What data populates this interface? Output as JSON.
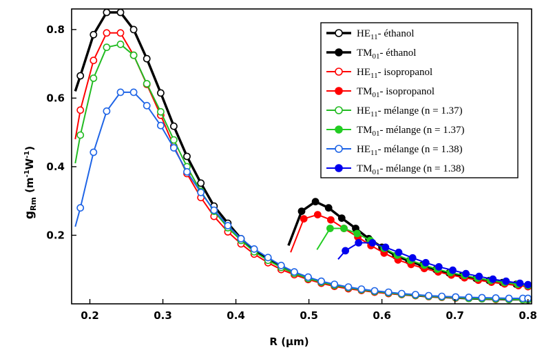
{
  "chart_data": {
    "type": "line",
    "xlabel": "R (µm)",
    "ylabel_main": "g",
    "ylabel_sub": "Rm",
    "ylabel_units": "(m",
    "ylabel_units_exp1": "-1",
    "ylabel_units_mid": "W",
    "ylabel_units_exp2": "-1",
    "ylabel_units_end": ")",
    "xlim": [
      0.175,
      0.805
    ],
    "ylim": [
      0.0,
      0.86
    ],
    "xticks": [
      0.2,
      0.3,
      0.4,
      0.5,
      0.6,
      0.7,
      0.8
    ],
    "xtick_labels": [
      "0.2",
      "0.3",
      "0.4",
      "0.5",
      "0.6",
      "0.7",
      "0.8"
    ],
    "yticks": [
      0.2,
      0.4,
      0.6,
      0.8
    ],
    "ytick_labels": [
      "0.2",
      "0.4",
      "0.6",
      "0.8"
    ],
    "grid": false,
    "legend_position": "top-right",
    "series": [
      {
        "name_main": "HE",
        "name_sub": "11",
        "name_rest": "- éthanol",
        "color": "#000000",
        "marker": "open",
        "line_width": 3.5,
        "x": [
          0.18,
          0.187,
          0.205,
          0.223,
          0.242,
          0.26,
          0.278,
          0.297,
          0.315,
          0.333,
          0.352,
          0.37,
          0.389,
          0.407,
          0.425,
          0.444,
          0.462,
          0.48,
          0.499,
          0.517,
          0.535,
          0.554,
          0.572,
          0.59,
          0.609,
          0.627,
          0.646,
          0.664,
          0.682,
          0.701,
          0.719,
          0.737,
          0.756,
          0.774,
          0.793,
          0.8
        ],
        "y": [
          0.62,
          0.665,
          0.785,
          0.85,
          0.85,
          0.8,
          0.715,
          0.615,
          0.518,
          0.43,
          0.352,
          0.285,
          0.235,
          0.19,
          0.155,
          0.13,
          0.108,
          0.09,
          0.075,
          0.063,
          0.054,
          0.047,
          0.041,
          0.036,
          0.032,
          0.028,
          0.025,
          0.022,
          0.02,
          0.018,
          0.016,
          0.015,
          0.014,
          0.013,
          0.013,
          0.012
        ]
      },
      {
        "name_main": "TM",
        "name_sub": "01",
        "name_rest": "- éthanol",
        "color": "#000000",
        "marker": "filled",
        "line_width": 3.5,
        "x": [
          0.472,
          0.49,
          0.509,
          0.527,
          0.545,
          0.564,
          0.582,
          0.6,
          0.619,
          0.637,
          0.655,
          0.674,
          0.692,
          0.71,
          0.729,
          0.747,
          0.765,
          0.784,
          0.8
        ],
        "y": [
          0.17,
          0.27,
          0.298,
          0.28,
          0.25,
          0.22,
          0.19,
          0.165,
          0.14,
          0.125,
          0.112,
          0.1,
          0.09,
          0.082,
          0.074,
          0.068,
          0.062,
          0.057,
          0.052
        ]
      },
      {
        "name_main": "HE",
        "name_sub": "11",
        "name_rest": "- isopropanol",
        "color": "#ff0000",
        "marker": "open",
        "line_width": 2,
        "x": [
          0.18,
          0.187,
          0.205,
          0.223,
          0.242,
          0.26,
          0.278,
          0.297,
          0.315,
          0.333,
          0.352,
          0.37,
          0.389,
          0.407,
          0.425,
          0.444,
          0.462,
          0.48,
          0.499,
          0.517,
          0.535,
          0.554,
          0.572,
          0.59,
          0.609,
          0.627,
          0.646,
          0.664,
          0.682,
          0.701,
          0.719,
          0.737,
          0.756,
          0.774,
          0.793,
          0.8
        ],
        "y": [
          0.48,
          0.565,
          0.71,
          0.79,
          0.79,
          0.725,
          0.64,
          0.55,
          0.46,
          0.38,
          0.31,
          0.255,
          0.21,
          0.175,
          0.145,
          0.12,
          0.1,
          0.085,
          0.071,
          0.06,
          0.051,
          0.044,
          0.039,
          0.034,
          0.03,
          0.027,
          0.024,
          0.021,
          0.019,
          0.017,
          0.016,
          0.015,
          0.013,
          0.013,
          0.012,
          0.012
        ]
      },
      {
        "name_main": "TM",
        "name_sub": "01",
        "name_rest": "- isopropanol",
        "color": "#ff0000",
        "marker": "filled",
        "line_width": 2,
        "x": [
          0.475,
          0.493,
          0.512,
          0.53,
          0.548,
          0.567,
          0.585,
          0.603,
          0.622,
          0.64,
          0.658,
          0.677,
          0.695,
          0.713,
          0.732,
          0.75,
          0.768,
          0.787,
          0.8
        ],
        "y": [
          0.15,
          0.248,
          0.26,
          0.245,
          0.22,
          0.195,
          0.17,
          0.148,
          0.128,
          0.115,
          0.103,
          0.093,
          0.084,
          0.076,
          0.069,
          0.063,
          0.058,
          0.053,
          0.05
        ]
      },
      {
        "name_main": "HE",
        "name_sub": "11",
        "name_rest": "- mélange (n = 1.37)",
        "color": "#22bb22",
        "marker": "open",
        "line_width": 2,
        "x": [
          0.18,
          0.187,
          0.205,
          0.223,
          0.242,
          0.26,
          0.278,
          0.297,
          0.315,
          0.333,
          0.352,
          0.37,
          0.389,
          0.407,
          0.425,
          0.444,
          0.462,
          0.48,
          0.499,
          0.517,
          0.535,
          0.554,
          0.572,
          0.59,
          0.609,
          0.627,
          0.646,
          0.664,
          0.682,
          0.701,
          0.719,
          0.737,
          0.756,
          0.774,
          0.793,
          0.8
        ],
        "y": [
          0.41,
          0.492,
          0.658,
          0.748,
          0.757,
          0.725,
          0.642,
          0.56,
          0.478,
          0.4,
          0.328,
          0.27,
          0.222,
          0.185,
          0.152,
          0.127,
          0.106,
          0.089,
          0.074,
          0.063,
          0.054,
          0.047,
          0.041,
          0.036,
          0.032,
          0.028,
          0.025,
          0.022,
          0.02,
          0.018,
          0.016,
          0.015,
          0.014,
          0.013,
          0.012,
          0.012
        ]
      },
      {
        "name_main": "TM",
        "name_sub": "01",
        "name_rest": "- mélange (n = 1.37)",
        "color": "#22cc22",
        "marker": "filled",
        "line_width": 2,
        "x": [
          0.511,
          0.529,
          0.548,
          0.566,
          0.584,
          0.603,
          0.621,
          0.639,
          0.658,
          0.676,
          0.694,
          0.713,
          0.731,
          0.749,
          0.768,
          0.786,
          0.8
        ],
        "y": [
          0.158,
          0.22,
          0.22,
          0.205,
          0.185,
          0.162,
          0.142,
          0.127,
          0.113,
          0.101,
          0.091,
          0.083,
          0.075,
          0.068,
          0.062,
          0.057,
          0.053
        ]
      },
      {
        "name_main": "HE",
        "name_sub": "11",
        "name_rest": "- mélange (n = 1.38)",
        "color": "#1e64e6",
        "marker": "open",
        "line_width": 2,
        "x": [
          0.18,
          0.187,
          0.205,
          0.223,
          0.242,
          0.26,
          0.278,
          0.297,
          0.315,
          0.333,
          0.352,
          0.37,
          0.389,
          0.407,
          0.425,
          0.444,
          0.462,
          0.48,
          0.499,
          0.517,
          0.535,
          0.554,
          0.572,
          0.59,
          0.609,
          0.627,
          0.646,
          0.664,
          0.682,
          0.701,
          0.719,
          0.737,
          0.756,
          0.774,
          0.793,
          0.8
        ],
        "y": [
          0.225,
          0.28,
          0.442,
          0.562,
          0.617,
          0.617,
          0.578,
          0.52,
          0.455,
          0.385,
          0.325,
          0.273,
          0.228,
          0.19,
          0.16,
          0.135,
          0.112,
          0.093,
          0.078,
          0.066,
          0.057,
          0.049,
          0.043,
          0.038,
          0.034,
          0.03,
          0.027,
          0.024,
          0.022,
          0.02,
          0.019,
          0.018,
          0.017,
          0.016,
          0.016,
          0.016
        ]
      },
      {
        "name_main": "TM",
        "name_sub": "01",
        "name_rest": "- mélange (n = 1.38)",
        "color": "#0000ee",
        "marker": "filled",
        "line_width": 2,
        "x": [
          0.54,
          0.55,
          0.568,
          0.587,
          0.605,
          0.623,
          0.642,
          0.66,
          0.678,
          0.697,
          0.715,
          0.733,
          0.752,
          0.77,
          0.789,
          0.8
        ],
        "y": [
          0.13,
          0.155,
          0.178,
          0.178,
          0.165,
          0.15,
          0.134,
          0.12,
          0.108,
          0.098,
          0.088,
          0.08,
          0.072,
          0.066,
          0.06,
          0.056
        ]
      }
    ]
  }
}
